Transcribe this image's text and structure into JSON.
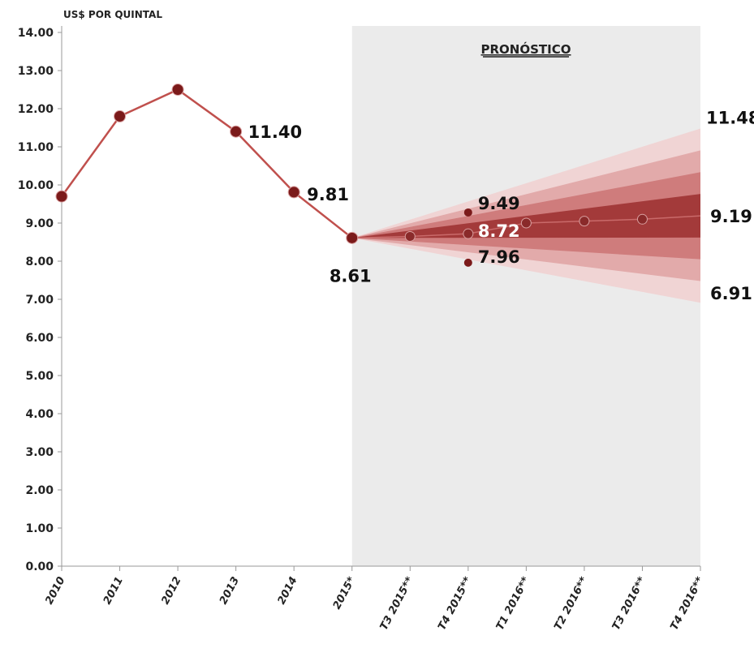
{
  "chart_data": {
    "type": "line",
    "ylabel": "US$ POR QUINTAL",
    "ylim": [
      0,
      14
    ],
    "y_ticks": [
      "0.00",
      "1.00",
      "2.00",
      "3.00",
      "4.00",
      "5.00",
      "6.00",
      "7.00",
      "8.00",
      "9.00",
      "10.00",
      "11.00",
      "12.00",
      "13.00",
      "14.00"
    ],
    "categories": [
      "2010",
      "2011",
      "2012",
      "2013",
      "2014",
      "2015*",
      "T3 2015**",
      "T4 2015**",
      "T1 2016**",
      "T2 2016**",
      "T3 2016**",
      "T4 2016**"
    ],
    "historical": {
      "values": [
        9.7,
        11.8,
        12.5,
        11.4,
        9.81,
        8.61
      ]
    },
    "forecast": {
      "label": "PRONÓSTICO",
      "start_index": 5,
      "central": [
        8.61,
        8.65,
        8.72,
        9.0,
        9.05,
        9.1,
        9.19
      ],
      "upper_end": 11.48,
      "lower_end": 6.91,
      "t4_2015_upper": 9.49,
      "t4_2015_lower": 7.96
    },
    "data_labels": [
      {
        "text": "11.40",
        "category": "2013",
        "value": 11.4
      },
      {
        "text": "9.81",
        "category": "2014",
        "value": 9.81
      },
      {
        "text": "8.61",
        "category": "2015*",
        "value": 8.61
      },
      {
        "text": "9.49",
        "category": "T4 2015**",
        "value": 9.49
      },
      {
        "text": "8.72",
        "category": "T4 2015**",
        "value": 8.72
      },
      {
        "text": "7.96",
        "category": "T4 2015**",
        "value": 7.96
      },
      {
        "text": "11.48",
        "category": "T4 2016**",
        "value": 11.48
      },
      {
        "text": "9.19",
        "category": "T4 2016**",
        "value": 9.19
      },
      {
        "text": "6.91",
        "category": "T4 2016**",
        "value": 6.91
      }
    ],
    "colors": {
      "line": "#c0504d",
      "marker": "#7b1a1a",
      "forecast_bg": "#ebebeb",
      "band_outer": "#f0d4d4",
      "band_mid": "#e2aaaa",
      "band_inner": "#cf7c7c",
      "band_core": "#a33a3a"
    }
  }
}
